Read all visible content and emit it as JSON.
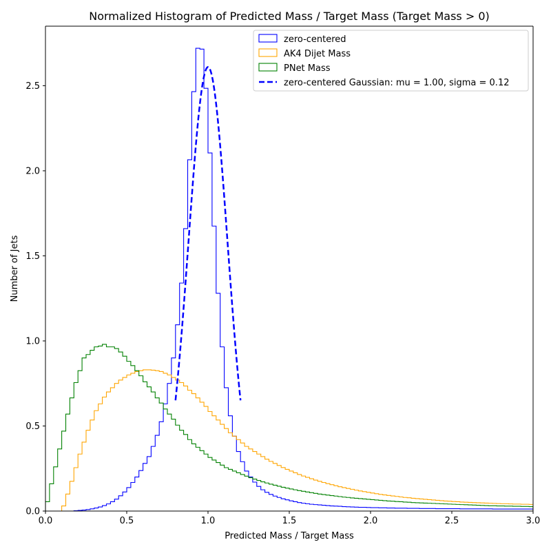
{
  "chart_data": {
    "type": "histogram",
    "title": "Normalized Histogram of Predicted Mass / Target Mass (Target Mass > 0)",
    "xlabel": "Predicted Mass / Target Mass",
    "ylabel": "Number of Jets",
    "xlim": [
      0,
      3
    ],
    "ylim": [
      0,
      2.85
    ],
    "xticks": [
      0,
      0.5,
      1,
      1.5,
      2,
      2.5,
      3
    ],
    "xtick_labels": [
      "0.0",
      "0.5",
      "1.0",
      "1.5",
      "2.0",
      "2.5",
      "3.0"
    ],
    "yticks": [
      0,
      0.5,
      1,
      1.5,
      2,
      2.5
    ],
    "ytick_labels": [
      "0.0",
      "0.5",
      "1.0",
      "1.5",
      "2.0",
      "2.5"
    ],
    "grid": false,
    "legend_position": "top-right",
    "bin_edges_start": 0,
    "bin_width": 0.025,
    "series": [
      {
        "name": "zero-centered",
        "color": "#0000ff",
        "style": "step",
        "values": [
          0.0,
          0.0,
          0.0,
          0.0,
          0.0,
          0.0,
          0.0,
          0.002,
          0.004,
          0.006,
          0.009,
          0.013,
          0.018,
          0.024,
          0.032,
          0.042,
          0.055,
          0.07,
          0.09,
          0.112,
          0.138,
          0.168,
          0.2,
          0.238,
          0.28,
          0.32,
          0.38,
          0.445,
          0.525,
          0.63,
          0.75,
          0.9,
          1.095,
          1.34,
          1.66,
          2.065,
          2.465,
          2.72,
          2.715,
          2.485,
          2.105,
          1.675,
          1.28,
          0.965,
          0.725,
          0.56,
          0.44,
          0.35,
          0.29,
          0.235,
          0.2,
          0.17,
          0.145,
          0.125,
          0.11,
          0.098,
          0.088,
          0.08,
          0.072,
          0.066,
          0.06,
          0.055,
          0.05,
          0.046,
          0.043,
          0.04,
          0.038,
          0.036,
          0.034,
          0.032,
          0.03,
          0.029,
          0.028,
          0.026,
          0.025,
          0.024,
          0.023,
          0.022,
          0.022,
          0.021,
          0.02,
          0.02,
          0.019,
          0.019,
          0.018,
          0.018,
          0.017,
          0.017,
          0.017,
          0.016,
          0.016,
          0.016,
          0.015,
          0.015,
          0.015,
          0.015,
          0.014,
          0.014,
          0.014,
          0.014,
          0.014,
          0.014,
          0.013,
          0.013,
          0.013,
          0.013,
          0.013,
          0.013,
          0.013,
          0.013,
          0.012,
          0.012,
          0.012,
          0.012,
          0.012,
          0.012,
          0.012,
          0.012,
          0.012,
          0.012
        ]
      },
      {
        "name": "AK4 Dijet Mass",
        "color": "#ffa500",
        "style": "step",
        "values": [
          0.0,
          0.0,
          0.0,
          0.0,
          0.03,
          0.1,
          0.175,
          0.255,
          0.335,
          0.405,
          0.475,
          0.535,
          0.59,
          0.63,
          0.67,
          0.7,
          0.725,
          0.75,
          0.77,
          0.785,
          0.8,
          0.81,
          0.82,
          0.825,
          0.83,
          0.83,
          0.828,
          0.825,
          0.82,
          0.81,
          0.8,
          0.785,
          0.77,
          0.755,
          0.735,
          0.71,
          0.69,
          0.665,
          0.64,
          0.615,
          0.585,
          0.56,
          0.535,
          0.51,
          0.485,
          0.46,
          0.44,
          0.42,
          0.4,
          0.38,
          0.365,
          0.35,
          0.335,
          0.32,
          0.305,
          0.292,
          0.28,
          0.268,
          0.256,
          0.245,
          0.235,
          0.225,
          0.215,
          0.206,
          0.198,
          0.19,
          0.182,
          0.175,
          0.168,
          0.161,
          0.155,
          0.149,
          0.143,
          0.138,
          0.133,
          0.128,
          0.123,
          0.118,
          0.114,
          0.11,
          0.106,
          0.102,
          0.098,
          0.095,
          0.092,
          0.089,
          0.086,
          0.083,
          0.08,
          0.078,
          0.075,
          0.073,
          0.071,
          0.069,
          0.067,
          0.065,
          0.063,
          0.061,
          0.059,
          0.058,
          0.056,
          0.055,
          0.053,
          0.052,
          0.051,
          0.05,
          0.049,
          0.048,
          0.047,
          0.046,
          0.045,
          0.044,
          0.043,
          0.043,
          0.042,
          0.041,
          0.041,
          0.04,
          0.04,
          0.039
        ]
      },
      {
        "name": "PNet Mass",
        "color": "#008000",
        "style": "step",
        "values": [
          0.055,
          0.16,
          0.26,
          0.365,
          0.47,
          0.57,
          0.665,
          0.755,
          0.825,
          0.9,
          0.92,
          0.945,
          0.965,
          0.97,
          0.98,
          0.965,
          0.965,
          0.955,
          0.935,
          0.91,
          0.88,
          0.855,
          0.825,
          0.795,
          0.76,
          0.73,
          0.7,
          0.665,
          0.635,
          0.6,
          0.57,
          0.54,
          0.505,
          0.475,
          0.45,
          0.42,
          0.395,
          0.375,
          0.355,
          0.335,
          0.315,
          0.3,
          0.285,
          0.27,
          0.255,
          0.245,
          0.235,
          0.225,
          0.215,
          0.205,
          0.196,
          0.188,
          0.18,
          0.172,
          0.165,
          0.158,
          0.152,
          0.146,
          0.14,
          0.135,
          0.13,
          0.125,
          0.12,
          0.116,
          0.112,
          0.108,
          0.104,
          0.1,
          0.097,
          0.094,
          0.091,
          0.088,
          0.085,
          0.082,
          0.08,
          0.077,
          0.075,
          0.073,
          0.071,
          0.069,
          0.067,
          0.065,
          0.063,
          0.061,
          0.059,
          0.058,
          0.056,
          0.055,
          0.053,
          0.052,
          0.05,
          0.049,
          0.048,
          0.047,
          0.046,
          0.045,
          0.044,
          0.043,
          0.042,
          0.041,
          0.04,
          0.039,
          0.038,
          0.037,
          0.036,
          0.035,
          0.034,
          0.033,
          0.032,
          0.031,
          0.031,
          0.03,
          0.03,
          0.029,
          0.029,
          0.028,
          0.028,
          0.027,
          0.027,
          0.026
        ]
      },
      {
        "name": "zero-centered Gaussian: mu = 1.00, sigma = 0.12",
        "color": "#0000ff",
        "style": "dashed-line",
        "function": "gaussian",
        "mu": 1.0,
        "sigma": 0.12,
        "peak": 2.61,
        "x_range": [
          0.8,
          1.2
        ]
      }
    ]
  }
}
